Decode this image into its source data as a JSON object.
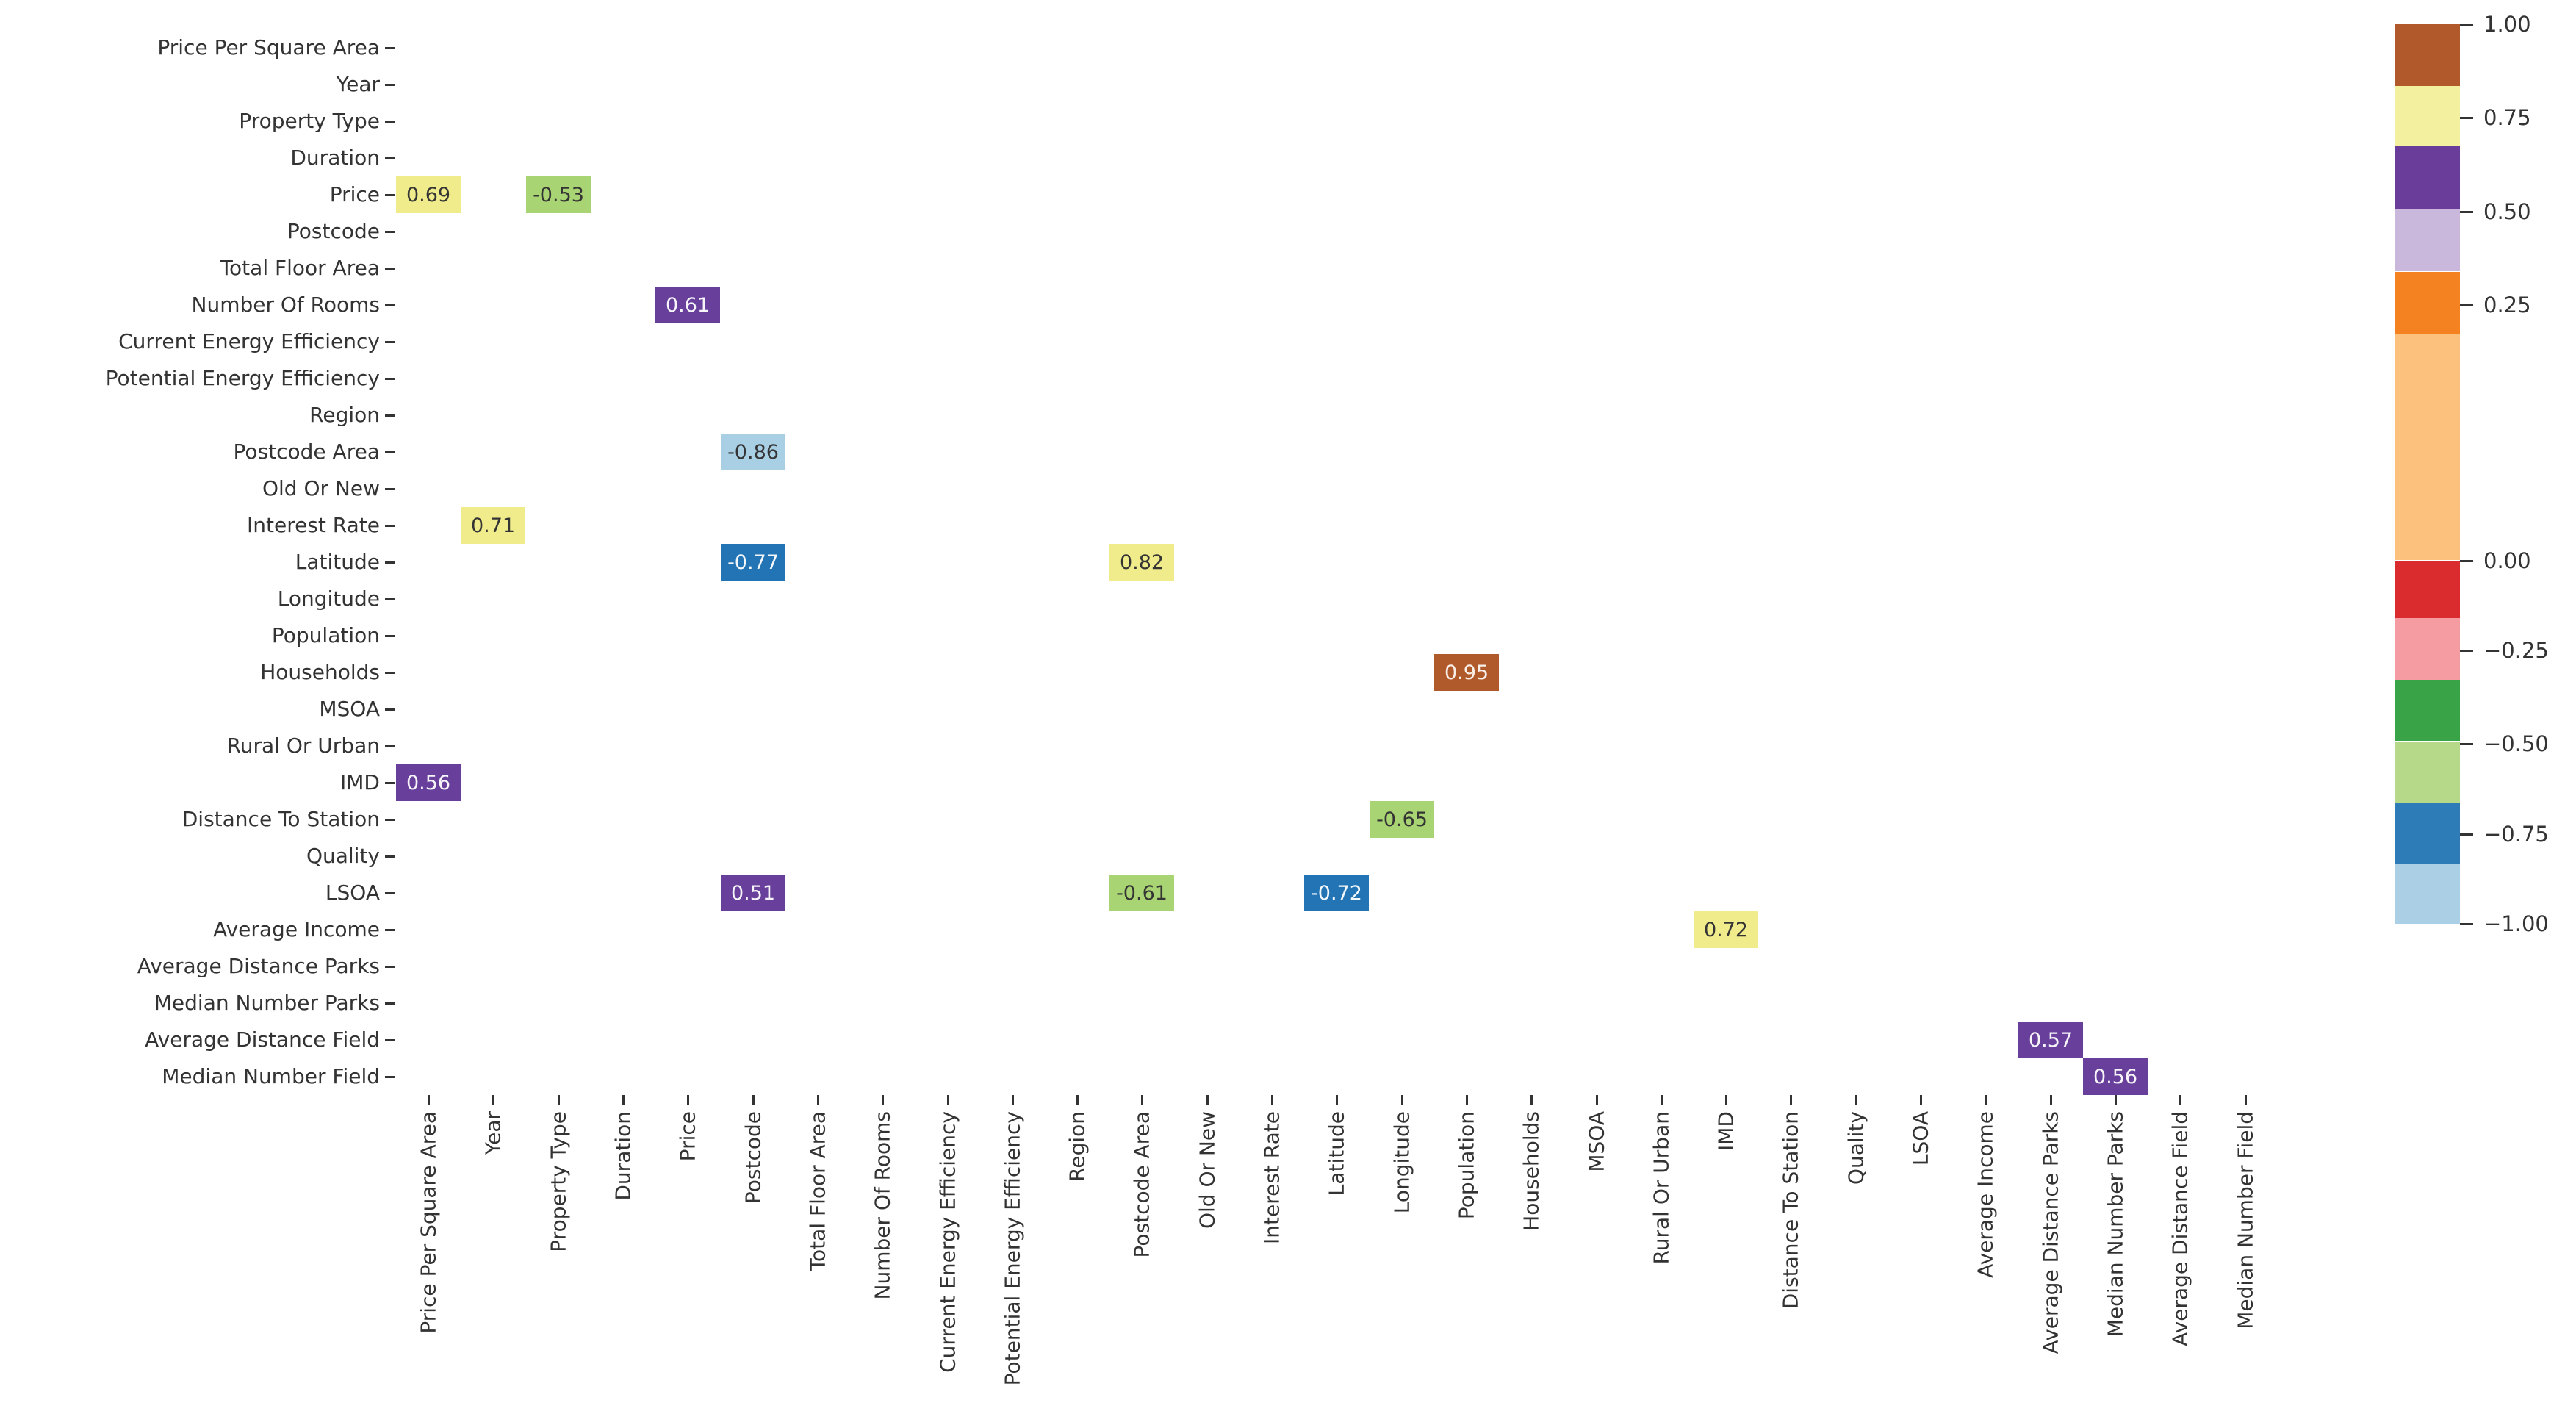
{
  "chart_data": {
    "type": "heatmap",
    "title": "",
    "xlabel": "",
    "ylabel": "",
    "grid": false,
    "legend_position": "right-colorbar",
    "variables": [
      "Price Per Square Area",
      "Year",
      "Property Type",
      "Duration",
      "Price",
      "Postcode",
      "Total Floor Area",
      "Number Of Rooms",
      "Current Energy Efficiency",
      "Potential Energy Efficiency",
      "Region",
      "Postcode Area",
      "Old Or New",
      "Interest Rate",
      "Latitude",
      "Longitude",
      "Population",
      "Households",
      "MSOA",
      "Rural Or Urban",
      "IMD",
      "Distance To Station",
      "Quality",
      "LSOA",
      "Average Income",
      "Average Distance Parks",
      "Median Number Parks",
      "Average Distance Field",
      "Median Number Field"
    ],
    "cells": [
      {
        "row": "Price",
        "col": "Price Per Square Area",
        "row_index": 4,
        "col_index": 0,
        "value": 0.69,
        "label": "0.69",
        "color": "#f0ec8c",
        "text_color": "#343434"
      },
      {
        "row": "Price",
        "col": "Property Type",
        "row_index": 4,
        "col_index": 2,
        "value": -0.53,
        "label": "-0.53",
        "color": "#a9d473",
        "text_color": "#343434"
      },
      {
        "row": "Number Of Rooms",
        "col": "Price",
        "row_index": 7,
        "col_index": 4,
        "value": 0.61,
        "label": "0.61",
        "color": "#68409b",
        "text_color": "#f7f5f9"
      },
      {
        "row": "Postcode Area",
        "col": "Postcode",
        "row_index": 11,
        "col_index": 5,
        "value": -0.86,
        "label": "-0.86",
        "color": "#a8cfe4",
        "text_color": "#343434"
      },
      {
        "row": "Interest Rate",
        "col": "Year",
        "row_index": 13,
        "col_index": 1,
        "value": 0.71,
        "label": "0.71",
        "color": "#f0ec8c",
        "text_color": "#343434"
      },
      {
        "row": "Latitude",
        "col": "Postcode",
        "row_index": 14,
        "col_index": 5,
        "value": -0.77,
        "label": "-0.77",
        "color": "#2274b5",
        "text_color": "#f4f8fb"
      },
      {
        "row": "Latitude",
        "col": "Postcode Area",
        "row_index": 14,
        "col_index": 11,
        "value": 0.82,
        "label": "0.82",
        "color": "#f0ec8c",
        "text_color": "#343434"
      },
      {
        "row": "Households",
        "col": "Population",
        "row_index": 17,
        "col_index": 16,
        "value": 0.95,
        "label": "0.95",
        "color": "#b05a2b",
        "text_color": "#f9efe9"
      },
      {
        "row": "IMD",
        "col": "Price Per Square Area",
        "row_index": 20,
        "col_index": 0,
        "value": 0.56,
        "label": "0.56",
        "color": "#68409b",
        "text_color": "#f7f5f9"
      },
      {
        "row": "Distance To Station",
        "col": "Longitude",
        "row_index": 21,
        "col_index": 15,
        "value": -0.65,
        "label": "-0.65",
        "color": "#a9d473",
        "text_color": "#343434"
      },
      {
        "row": "LSOA",
        "col": "Postcode",
        "row_index": 23,
        "col_index": 5,
        "value": 0.51,
        "label": "0.51",
        "color": "#68409b",
        "text_color": "#f7f5f9"
      },
      {
        "row": "LSOA",
        "col": "Postcode Area",
        "row_index": 23,
        "col_index": 11,
        "value": -0.61,
        "label": "-0.61",
        "color": "#a9d473",
        "text_color": "#343434"
      },
      {
        "row": "LSOA",
        "col": "Latitude",
        "row_index": 23,
        "col_index": 14,
        "value": -0.72,
        "label": "-0.72",
        "color": "#2274b5",
        "text_color": "#f4f8fb"
      },
      {
        "row": "Average Income",
        "col": "IMD",
        "row_index": 24,
        "col_index": 20,
        "value": 0.72,
        "label": "0.72",
        "color": "#f0ec8c",
        "text_color": "#343434"
      },
      {
        "row": "Average Distance Field",
        "col": "Average Distance Parks",
        "row_index": 27,
        "col_index": 25,
        "value": 0.57,
        "label": "0.57",
        "color": "#68409b",
        "text_color": "#f7f5f9"
      },
      {
        "row": "Median Number Field",
        "col": "Median Number Parks",
        "row_index": 28,
        "col_index": 26,
        "value": 0.56,
        "label": "0.56",
        "color": "#68409b",
        "text_color": "#f7f5f9"
      }
    ],
    "colorbar": {
      "vmin": -1.0,
      "vmax": 1.0,
      "ticks": [
        {
          "label": "1.00",
          "pos": 0.0
        },
        {
          "label": "0.75",
          "pos": 0.104
        },
        {
          "label": "0.50",
          "pos": 0.208
        },
        {
          "label": "0.25",
          "pos": 0.312
        },
        {
          "label": "0.00",
          "pos": 0.596
        },
        {
          "label": "−0.25",
          "pos": 0.696
        },
        {
          "label": "−0.50",
          "pos": 0.8
        },
        {
          "label": "−0.75",
          "pos": 0.9
        },
        {
          "label": "−1.00",
          "pos": 1.0
        }
      ],
      "segments": [
        {
          "name": "brown",
          "color": "#b1592b",
          "from": 0.0,
          "to": 0.069
        },
        {
          "name": "yellow",
          "color": "#f3f0a0",
          "from": 0.069,
          "to": 0.136
        },
        {
          "name": "dark-purple",
          "color": "#6a3d9a",
          "from": 0.136,
          "to": 0.206
        },
        {
          "name": "light-purple",
          "color": "#c9b8dc",
          "from": 0.206,
          "to": 0.275
        },
        {
          "name": "orange",
          "color": "#f58220",
          "from": 0.275,
          "to": 0.345
        },
        {
          "name": "light-orange",
          "color": "#fbc17d",
          "from": 0.345,
          "to": 0.596
        },
        {
          "name": "red",
          "color": "#da2b2e",
          "from": 0.596,
          "to": 0.66
        },
        {
          "name": "pink",
          "color": "#f59ba2",
          "from": 0.66,
          "to": 0.729
        },
        {
          "name": "dark-green",
          "color": "#38a347",
          "from": 0.729,
          "to": 0.797
        },
        {
          "name": "light-green",
          "color": "#b5d988",
          "from": 0.797,
          "to": 0.865
        },
        {
          "name": "blue",
          "color": "#2d7cb8",
          "from": 0.865,
          "to": 0.933
        },
        {
          "name": "light-blue",
          "color": "#abd0e6",
          "from": 0.933,
          "to": 1.0
        }
      ]
    }
  }
}
